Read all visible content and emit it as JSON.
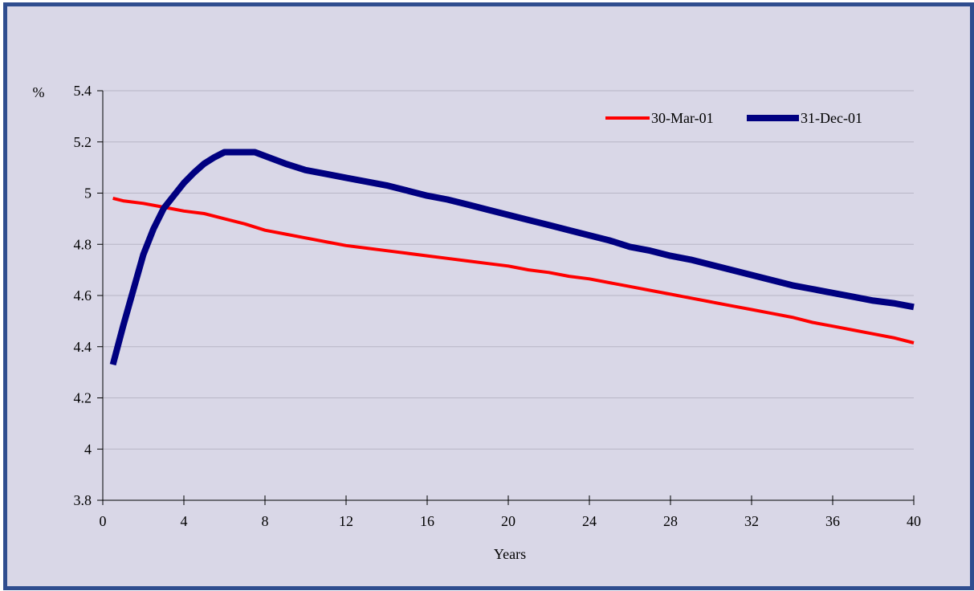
{
  "chart_data": {
    "type": "line",
    "title": "",
    "xlabel": "Years",
    "ylabel": "%",
    "xlim": [
      0,
      40
    ],
    "ylim": [
      3.8,
      5.4
    ],
    "xticks": [
      "0",
      "4",
      "8",
      "12",
      "16",
      "20",
      "24",
      "28",
      "32",
      "36",
      "40"
    ],
    "yticks": [
      "3.8",
      "4",
      "4.2",
      "4.4",
      "4.6",
      "4.8",
      "5",
      "5.2",
      "5.4"
    ],
    "grid": true,
    "legend_position": "top-right",
    "series": [
      {
        "name": "30-Mar-01",
        "color": "#ff0000",
        "x": [
          0.5,
          1,
          2,
          3,
          4,
          5,
          6,
          7,
          8,
          9,
          10,
          11,
          12,
          13,
          14,
          15,
          16,
          17,
          18,
          19,
          20,
          21,
          22,
          23,
          24,
          25,
          26,
          27,
          28,
          29,
          30,
          31,
          32,
          33,
          34,
          35,
          36,
          37,
          38,
          39,
          40
        ],
        "values": [
          4.98,
          4.97,
          4.96,
          4.945,
          4.93,
          4.92,
          4.9,
          4.88,
          4.855,
          4.84,
          4.825,
          4.81,
          4.795,
          4.785,
          4.775,
          4.765,
          4.755,
          4.745,
          4.735,
          4.725,
          4.715,
          4.7,
          4.69,
          4.675,
          4.665,
          4.65,
          4.635,
          4.62,
          4.605,
          4.59,
          4.575,
          4.56,
          4.545,
          4.53,
          4.515,
          4.495,
          4.48,
          4.465,
          4.45,
          4.435,
          4.415
        ]
      },
      {
        "name": "31-Dec-01",
        "color": "#000080",
        "x": [
          0.5,
          1,
          2,
          2.5,
          3,
          4,
          4.5,
          5,
          5.5,
          6,
          7,
          7.5,
          8,
          9,
          10,
          11,
          12,
          13,
          14,
          15,
          16,
          17,
          18,
          19,
          20,
          21,
          22,
          23,
          24,
          25,
          26,
          27,
          28,
          29,
          30,
          31,
          32,
          33,
          34,
          35,
          36,
          37,
          38,
          39,
          40
        ],
        "values": [
          4.33,
          4.48,
          4.76,
          4.86,
          4.94,
          5.04,
          5.08,
          5.115,
          5.14,
          5.16,
          5.16,
          5.16,
          5.145,
          5.115,
          5.09,
          5.075,
          5.06,
          5.045,
          5.03,
          5.01,
          4.99,
          4.975,
          4.955,
          4.935,
          4.915,
          4.895,
          4.875,
          4.855,
          4.835,
          4.815,
          4.79,
          4.775,
          4.755,
          4.74,
          4.72,
          4.7,
          4.68,
          4.66,
          4.64,
          4.625,
          4.61,
          4.595,
          4.58,
          4.57,
          4.555
        ]
      }
    ]
  }
}
